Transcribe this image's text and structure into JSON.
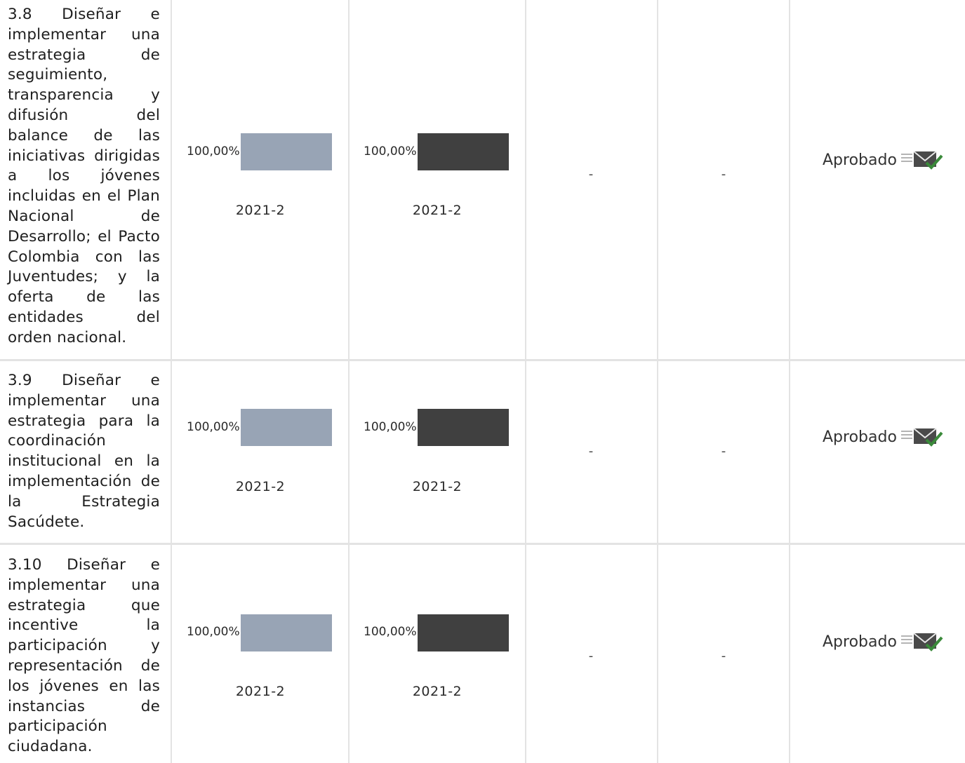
{
  "rows": [
    {
      "description": "3.8 Diseñar e implementar una estrategia de seguimiento, transparencia y difusión del balance de las iniciativas dirigidas a los jóvenes incluidas en el Plan Nacional de Desarrollo; el Pacto Colombia con las Juventudes; y la oferta de las entidades del orden nacional.",
      "bar1": {
        "value_label": "100,00%",
        "progress": 1.0,
        "color": "#98a4b5",
        "period": "2021-2"
      },
      "bar2": {
        "value_label": "100,00%",
        "progress": 1.0,
        "color": "#404040",
        "period": "2021-2"
      },
      "col4": "-",
      "col5": "-",
      "status": "Aprobado",
      "status_icon": "envelope-check-icon"
    },
    {
      "description": "3.9 Diseñar e implementar una estrategia para la coordinación institucional en la implementación de la Estrategia Sacúdete.",
      "bar1": {
        "value_label": "100,00%",
        "progress": 1.0,
        "color": "#98a4b5",
        "period": "2021-2"
      },
      "bar2": {
        "value_label": "100,00%",
        "progress": 1.0,
        "color": "#404040",
        "period": "2021-2"
      },
      "col4": "-",
      "col5": "-",
      "status": "Aprobado",
      "status_icon": "envelope-check-icon"
    },
    {
      "description": "3.10 Diseñar e implementar una estrategia que incentive la participación y representación de los jóvenes en las instancias de participación ciudadana.",
      "bar1": {
        "value_label": "100,00%",
        "progress": 1.0,
        "color": "#98a4b5",
        "period": "2021-2"
      },
      "bar2": {
        "value_label": "100,00%",
        "progress": 1.0,
        "color": "#404040",
        "period": "2021-2"
      },
      "col4": "-",
      "col5": "-",
      "status": "Aprobado",
      "status_icon": "envelope-check-icon"
    }
  ],
  "colors": {
    "grid_line": "#e3e3e3",
    "icon_check": "#3a8a3a"
  }
}
